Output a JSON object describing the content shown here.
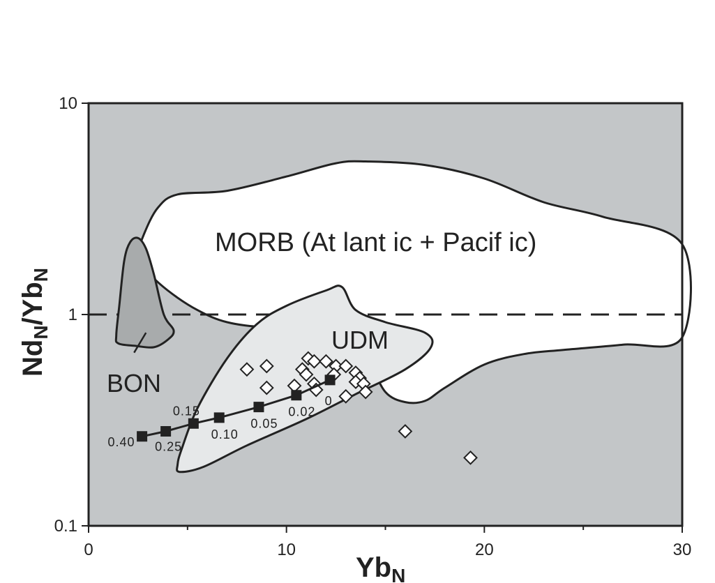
{
  "chart_data": {
    "type": "scatter",
    "title": "",
    "x_axis": {
      "scale": "linear",
      "range": [
        0,
        30
      ],
      "ticks": [
        "0",
        "10",
        "20",
        "30"
      ]
    },
    "y_axis": {
      "scale": "log",
      "range": [
        0.1,
        10
      ],
      "ticks": [
        "0.1",
        "1",
        "10"
      ]
    },
    "xlabel": {
      "main": "Yb",
      "sub": "N"
    },
    "ylabel": {
      "main1": "Nd",
      "sub1": "N",
      "mid": "/Yb",
      "sub2": "N"
    },
    "reference_line": {
      "y": 1,
      "style": "dashed"
    },
    "fields": [
      {
        "label": "MORB (At lant ic + Pacif ic)",
        "fill": "#ffffff",
        "outline": [
          [
            2.8,
            2.4
          ],
          [
            3.5,
            3.2
          ],
          [
            4.5,
            3.7
          ],
          [
            7,
            3.85
          ],
          [
            10,
            4.5
          ],
          [
            12.5,
            5.2
          ],
          [
            14,
            5.3
          ],
          [
            17,
            5.1
          ],
          [
            20,
            4.4
          ],
          [
            23,
            3.4
          ],
          [
            26,
            2.9
          ],
          [
            30,
            2.15
          ],
          [
            30,
            0.78
          ],
          [
            27,
            0.72
          ],
          [
            24,
            0.68
          ],
          [
            22,
            0.65
          ],
          [
            20,
            0.58
          ],
          [
            18,
            0.45
          ],
          [
            17,
            0.39
          ],
          [
            16,
            0.385
          ],
          [
            15,
            0.43
          ],
          [
            14.2,
            0.6
          ],
          [
            13.5,
            0.78
          ],
          [
            12.5,
            0.9
          ],
          [
            11,
            0.88
          ],
          [
            9,
            0.87
          ],
          [
            7,
            0.92
          ],
          [
            5.5,
            1.05
          ],
          [
            4,
            1.3
          ],
          [
            3,
            1.6
          ],
          [
            2.6,
            2.0
          ]
        ]
      },
      {
        "label": "UDM",
        "fill": "#e6e8e9",
        "outline": [
          [
            4.6,
            0.18
          ],
          [
            5.8,
            0.19
          ],
          [
            8,
            0.24
          ],
          [
            11,
            0.32
          ],
          [
            13.5,
            0.42
          ],
          [
            16,
            0.55
          ],
          [
            17.3,
            0.7
          ],
          [
            17,
            0.82
          ],
          [
            15,
            0.92
          ],
          [
            13.5,
            1.05
          ],
          [
            12.8,
            1.35
          ],
          [
            12,
            1.3
          ],
          [
            10,
            1.1
          ],
          [
            8.5,
            0.9
          ],
          [
            7,
            0.62
          ],
          [
            5.5,
            0.36
          ],
          [
            4.7,
            0.23
          ],
          [
            4.5,
            0.195
          ]
        ]
      },
      {
        "label": "BON",
        "fill": "#a8abac",
        "outline": [
          [
            2.5,
            2.3
          ],
          [
            2.9,
            2.05
          ],
          [
            3.3,
            1.55
          ],
          [
            3.8,
            1.0
          ],
          [
            4.3,
            0.84
          ],
          [
            4,
            0.76
          ],
          [
            3.3,
            0.7
          ],
          [
            2.4,
            0.71
          ],
          [
            1.5,
            0.73
          ],
          [
            1.4,
            0.8
          ],
          [
            1.55,
            1.1
          ],
          [
            1.8,
            1.8
          ],
          [
            2.1,
            2.2
          ]
        ]
      }
    ],
    "leader_lines": [
      {
        "from": [
          2.3,
          0.66
        ],
        "to": [
          2.9,
          0.82
        ]
      }
    ],
    "series": [
      {
        "marker": "open-diamond",
        "points": [
          [
            8,
            0.55
          ],
          [
            9,
            0.57
          ],
          [
            9,
            0.45
          ],
          [
            10.4,
            0.46
          ],
          [
            10.8,
            0.55
          ],
          [
            11,
            0.52
          ],
          [
            11.1,
            0.62
          ],
          [
            11.4,
            0.6
          ],
          [
            11.4,
            0.47
          ],
          [
            11.5,
            0.44
          ],
          [
            12,
            0.6
          ],
          [
            12.5,
            0.57
          ],
          [
            12.4,
            0.52
          ],
          [
            13,
            0.57
          ],
          [
            13.5,
            0.53
          ],
          [
            13.7,
            0.5
          ],
          [
            13.5,
            0.48
          ],
          [
            13.9,
            0.47
          ],
          [
            14,
            0.43
          ],
          [
            13,
            0.41
          ],
          [
            16,
            0.28
          ],
          [
            19.3,
            0.21
          ]
        ]
      },
      {
        "marker": "filled-square",
        "line": true,
        "points": [
          [
            2.7,
            0.265
          ],
          [
            3.9,
            0.28
          ],
          [
            5.3,
            0.305
          ],
          [
            6.6,
            0.325
          ],
          [
            8.6,
            0.365
          ],
          [
            10.5,
            0.415
          ],
          [
            12.2,
            0.49
          ]
        ],
        "labels": [
          "0.40",
          "0.25",
          "0.15",
          "0.10",
          "0.05",
          "0.02",
          "0"
        ]
      }
    ]
  }
}
